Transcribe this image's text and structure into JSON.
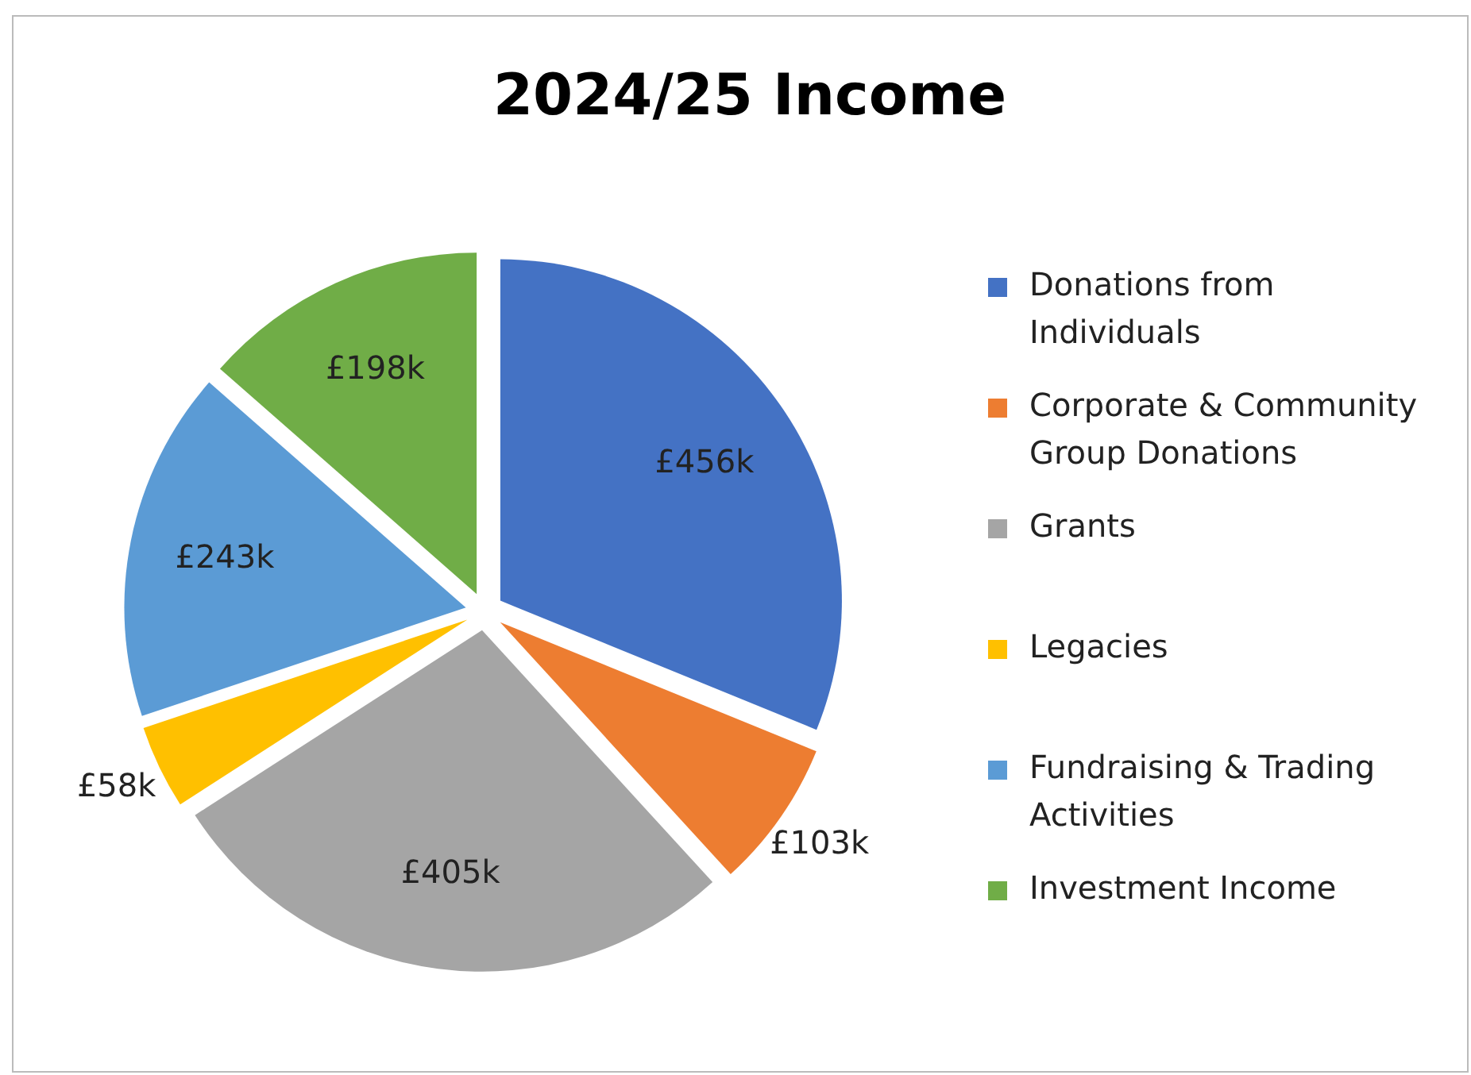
{
  "chart_data": {
    "type": "pie",
    "title": "2024/25 Income",
    "categories": [
      "Donations from Individuals",
      "Corporate & Community Group Donations",
      "Grants",
      "Legacies",
      "Fundraising & Trading Activities",
      "Investment Income"
    ],
    "values": [
      456,
      103,
      405,
      58,
      243,
      198
    ],
    "value_labels": [
      "£456k",
      "£103k",
      "£405k",
      "£58k",
      "£243k",
      "£198k"
    ],
    "colors": [
      "#4472c4",
      "#ed7d31",
      "#a5a5a5",
      "#ffc000",
      "#5b9bd5",
      "#70ad47"
    ],
    "legend": "right"
  }
}
